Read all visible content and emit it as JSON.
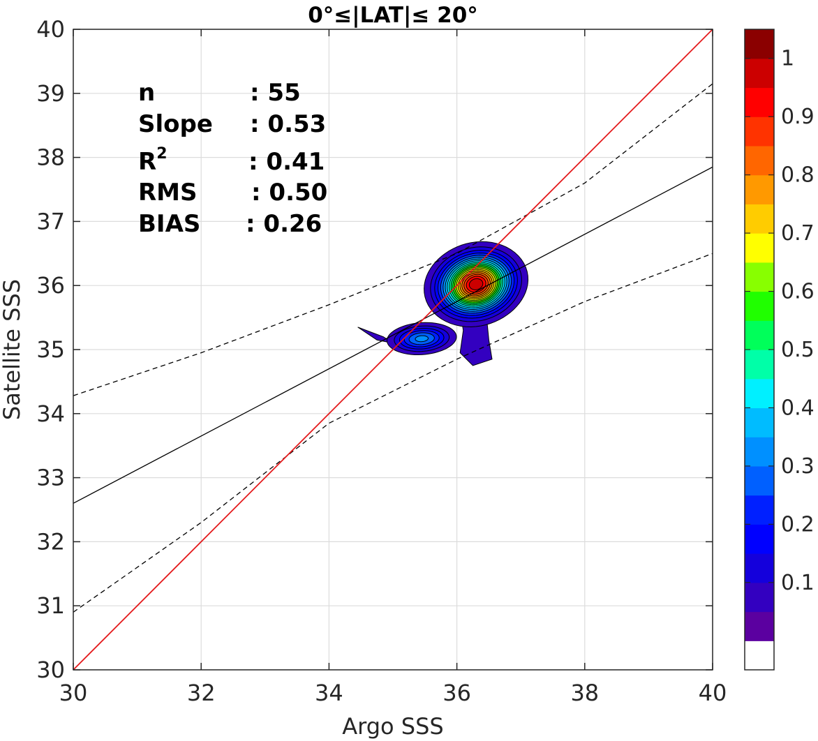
{
  "chart_data": {
    "type": "contour",
    "title": "0°≤|LAT|≤ 20°",
    "xlabel": "Argo SSS",
    "ylabel": "Satellite SSS",
    "xlim": [
      30,
      40
    ],
    "ylim": [
      30,
      40
    ],
    "xticks": [
      "30",
      "32",
      "34",
      "36",
      "38",
      "40"
    ],
    "yticks": [
      "30",
      "31",
      "32",
      "33",
      "34",
      "35",
      "36",
      "37",
      "38",
      "39",
      "40"
    ],
    "grid": true,
    "stats": [
      {
        "label": "n",
        "value": ": 55"
      },
      {
        "label": "Slope",
        "value": ": 0.53"
      },
      {
        "label": "R",
        "sup": "2",
        "value": ": 0.41"
      },
      {
        "label": "RMS",
        "value": ": 0.50"
      },
      {
        "label": "BIAS",
        "value": ": 0.26"
      }
    ],
    "lines": {
      "one_to_one": {
        "color": "#e41a1c",
        "points": [
          [
            30,
            30
          ],
          [
            40,
            40
          ]
        ]
      },
      "regression": {
        "color": "#000000",
        "points": [
          [
            30,
            32.6
          ],
          [
            40,
            37.85
          ]
        ]
      },
      "upper_bound": {
        "style": "dashed",
        "points": [
          [
            30,
            34.28
          ],
          [
            32,
            34.95
          ],
          [
            34,
            35.7
          ],
          [
            36,
            36.5
          ],
          [
            38,
            37.6
          ],
          [
            40,
            39.15
          ]
        ]
      },
      "lower_bound": {
        "style": "dashed",
        "points": [
          [
            30,
            30.9
          ],
          [
            32,
            32.3
          ],
          [
            34,
            33.85
          ],
          [
            36,
            34.85
          ],
          [
            38,
            35.75
          ],
          [
            40,
            36.5
          ]
        ]
      }
    },
    "density": {
      "blobs": [
        {
          "x": 36.3,
          "y": 36.02,
          "peak": 1.0,
          "sx": 0.33,
          "sy": 0.27
        },
        {
          "x": 35.45,
          "y": 35.17,
          "peak": 0.32,
          "sx": 0.28,
          "sy": 0.13
        }
      ],
      "extra_low_regions": [
        [
          [
            36.05,
            35.6
          ],
          [
            36.45,
            35.65
          ],
          [
            36.5,
            35.15
          ],
          [
            36.55,
            34.85
          ],
          [
            36.25,
            34.75
          ],
          [
            36.05,
            34.95
          ],
          [
            36.1,
            35.3
          ]
        ],
        [
          [
            34.45,
            35.35
          ],
          [
            34.85,
            35.2
          ],
          [
            35.0,
            35.1
          ],
          [
            34.75,
            35.15
          ],
          [
            34.6,
            35.25
          ]
        ],
        [
          [
            35.75,
            36.05
          ],
          [
            36.05,
            36.15
          ],
          [
            36.1,
            35.9
          ],
          [
            35.85,
            35.9
          ]
        ]
      ]
    },
    "colorbar": {
      "ticks": [
        "0.1",
        "0.2",
        "0.3",
        "0.4",
        "0.5",
        "0.6",
        "0.7",
        "0.8",
        "0.9",
        "1"
      ],
      "tick_values": [
        0.1,
        0.2,
        0.3,
        0.4,
        0.5,
        0.6,
        0.7,
        0.8,
        0.9,
        1.0
      ],
      "levels": [
        0,
        0.05,
        0.1,
        0.15,
        0.2,
        0.25,
        0.3,
        0.35,
        0.4,
        0.45,
        0.5,
        0.55,
        0.6,
        0.65,
        0.7,
        0.75,
        0.8,
        0.85,
        0.9,
        0.95,
        1.0
      ],
      "colors": [
        "#ffffff",
        "#5b00a0",
        "#3300c0",
        "#1400dc",
        "#0000ff",
        "#0020ff",
        "#0060ff",
        "#0090ff",
        "#00bcff",
        "#00f0ff",
        "#00ffa8",
        "#00ff5a",
        "#20ff00",
        "#88ff00",
        "#ffff00",
        "#ffcc00",
        "#ff9900",
        "#ff6600",
        "#ff3300",
        "#ff0000",
        "#cc0000",
        "#8b0000"
      ]
    }
  }
}
